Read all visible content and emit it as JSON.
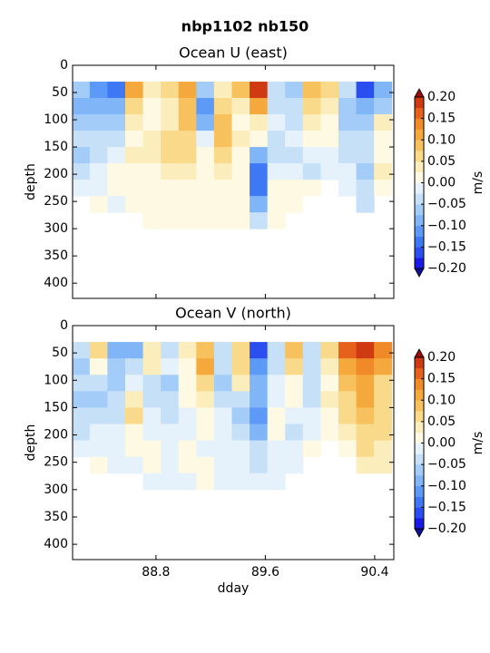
{
  "title": "nbp1102 nb150",
  "chart_data": [
    {
      "type": "contourf",
      "title": "Ocean U (east)",
      "ylabel": "depth",
      "x": [
        88.25,
        88.38,
        88.51,
        88.64,
        88.77,
        88.9,
        89.03,
        89.16,
        89.29,
        89.42,
        89.55,
        89.68,
        89.81,
        89.94,
        90.07,
        90.2,
        90.33,
        90.46
      ],
      "depth": [
        45,
        75,
        105,
        135,
        165,
        195,
        225,
        255,
        285,
        315
      ],
      "values": [
        [
          -0.06,
          -0.08,
          -0.06,
          -0.04,
          -0.06,
          -0.04,
          -0.02,
          null,
          null,
          null
        ],
        [
          -0.12,
          -0.09,
          -0.07,
          -0.05,
          -0.03,
          -0.02,
          -0.01,
          0.01,
          null,
          null
        ],
        [
          -0.14,
          -0.1,
          -0.06,
          -0.03,
          -0.02,
          0.01,
          0.01,
          -0.01,
          null,
          null
        ],
        [
          0.1,
          0.06,
          0.03,
          0.02,
          0.03,
          0.02,
          0.01,
          0.01,
          null,
          null
        ],
        [
          0.04,
          0.02,
          0.01,
          0.03,
          0.04,
          0.02,
          0.01,
          0.01,
          0.01,
          null
        ],
        [
          0.06,
          0.03,
          0.04,
          0.06,
          0.05,
          0.03,
          0.02,
          0.01,
          0.01,
          null
        ],
        [
          0.11,
          0.08,
          0.09,
          0.07,
          0.05,
          0.03,
          0.02,
          0.01,
          0.01,
          null
        ],
        [
          -0.06,
          -0.11,
          -0.08,
          -0.02,
          0.01,
          0.02,
          0.01,
          0.01,
          0.01,
          null
        ],
        [
          0.04,
          0.06,
          0.09,
          0.08,
          0.06,
          0.03,
          0.02,
          0.01,
          0.01,
          null
        ],
        [
          0.08,
          0.03,
          0.02,
          0.03,
          0.02,
          0.01,
          0.02,
          0.01,
          0.01,
          null
        ],
        [
          0.18,
          0.1,
          0.03,
          0.01,
          -0.1,
          -0.15,
          -0.14,
          -0.1,
          -0.04,
          null
        ],
        [
          -0.04,
          -0.03,
          -0.02,
          -0.03,
          -0.04,
          -0.02,
          0.01,
          0.01,
          0.01,
          null
        ],
        [
          -0.06,
          -0.04,
          -0.03,
          -0.02,
          -0.03,
          -0.01,
          0.01,
          0.01,
          null,
          null
        ],
        [
          0.09,
          0.06,
          0.03,
          0.02,
          -0.02,
          -0.03,
          0.01,
          null,
          null,
          null
        ],
        [
          0.07,
          0.04,
          0.02,
          0.01,
          -0.02,
          -0.01,
          null,
          null,
          null,
          null
        ],
        [
          -0.05,
          -0.07,
          -0.06,
          -0.04,
          -0.03,
          -0.02,
          -0.02,
          null,
          null,
          null
        ],
        [
          -0.16,
          -0.1,
          -0.07,
          -0.05,
          -0.04,
          -0.06,
          -0.05,
          -0.03,
          null,
          null
        ],
        [
          -0.09,
          -0.06,
          0.03,
          0.02,
          0.01,
          0.03,
          0.02,
          null,
          null,
          null
        ]
      ],
      "xlim": [
        88.19,
        90.54
      ],
      "xticks": [
        88.8,
        89.6,
        90.4
      ],
      "show_xticklabels": false,
      "ylim": [
        0,
        428
      ],
      "yticks": [
        0,
        50,
        100,
        150,
        200,
        250,
        300,
        350,
        400
      ],
      "invert_y": true,
      "colorbar": {
        "label": "m/s",
        "levels": [
          -0.2,
          -0.175,
          -0.15,
          -0.125,
          -0.1,
          -0.075,
          -0.05,
          -0.025,
          0,
          0.025,
          0.05,
          0.075,
          0.1,
          0.125,
          0.15,
          0.175,
          0.2
        ],
        "colors": [
          "#1a1ae6",
          "#2a4ef0",
          "#3f78f5",
          "#5d9af7",
          "#80b6f8",
          "#a3ccf8",
          "#c6e0f8",
          "#e6f2fb",
          "#fdf9e2",
          "#fbedbc",
          "#f9d98a",
          "#f7c25e",
          "#f5a83c",
          "#f08a28",
          "#e6621c",
          "#d03a12"
        ],
        "under": "#10109a",
        "over": "#a00c0c",
        "ticks": [
          {
            "value": 0.2,
            "label": "0.20"
          },
          {
            "value": 0.15,
            "label": "0.15"
          },
          {
            "value": 0.1,
            "label": "0.10"
          },
          {
            "value": 0.05,
            "label": "0.05"
          },
          {
            "value": 0,
            "label": "0.00"
          },
          {
            "value": -0.05,
            "label": "−0.05"
          },
          {
            "value": -0.1,
            "label": "−0.10"
          },
          {
            "value": -0.15,
            "label": "−0.15"
          },
          {
            "value": -0.2,
            "label": "−0.20"
          }
        ]
      }
    },
    {
      "type": "contourf",
      "title": "Ocean V (north)",
      "ylabel": "depth",
      "xlabel": "dday",
      "x": [
        88.25,
        88.38,
        88.51,
        88.64,
        88.77,
        88.9,
        89.03,
        89.16,
        89.29,
        89.42,
        89.55,
        89.68,
        89.81,
        89.94,
        90.07,
        90.2,
        90.33,
        90.46
      ],
      "depth": [
        45,
        75,
        105,
        135,
        165,
        195,
        225,
        255,
        285,
        315
      ],
      "values": [
        [
          -0.04,
          -0.06,
          -0.05,
          -0.07,
          -0.05,
          -0.03,
          -0.02,
          null,
          null,
          null
        ],
        [
          0.06,
          0.02,
          -0.04,
          -0.06,
          -0.04,
          -0.02,
          -0.01,
          0.01,
          null,
          null
        ],
        [
          -0.1,
          -0.07,
          -0.06,
          -0.04,
          -0.03,
          -0.02,
          -0.01,
          -0.01,
          null,
          null
        ],
        [
          -0.08,
          -0.05,
          -0.02,
          0.04,
          0.06,
          0.02,
          0.01,
          -0.01,
          null,
          null
        ],
        [
          0.04,
          0.03,
          -0.03,
          -0.04,
          -0.02,
          -0.01,
          0.01,
          0.01,
          -0.01,
          null
        ],
        [
          -0.04,
          -0.02,
          -0.06,
          -0.05,
          -0.03,
          -0.02,
          -0.01,
          -0.01,
          -0.01,
          null
        ],
        [
          0.03,
          0.01,
          0.02,
          0.01,
          -0.02,
          -0.01,
          0.01,
          0.01,
          -0.01,
          null
        ],
        [
          0.08,
          0.12,
          0.07,
          0.03,
          0.02,
          0.01,
          -0.01,
          0.01,
          0.01,
          null
        ],
        [
          -0.05,
          -0.04,
          -0.06,
          -0.03,
          -0.02,
          -0.01,
          -0.02,
          -0.01,
          -0.01,
          null
        ],
        [
          0.07,
          0.05,
          0.03,
          -0.04,
          -0.06,
          -0.04,
          -0.02,
          -0.01,
          -0.01,
          null
        ],
        [
          -0.16,
          -0.12,
          -0.09,
          -0.1,
          -0.11,
          -0.08,
          -0.05,
          -0.03,
          -0.01,
          null
        ],
        [
          -0.05,
          -0.04,
          -0.02,
          -0.01,
          0.01,
          0.01,
          -0.01,
          -0.01,
          -0.01,
          null
        ],
        [
          0.09,
          0.06,
          0.02,
          0.01,
          -0.02,
          -0.03,
          -0.01,
          -0.01,
          null,
          null
        ],
        [
          -0.04,
          -0.05,
          -0.04,
          -0.03,
          -0.02,
          -0.01,
          0.01,
          null,
          null,
          null
        ],
        [
          0.05,
          0.03,
          0.02,
          0.03,
          0.02,
          0.01,
          null,
          null,
          null,
          null
        ],
        [
          0.16,
          0.12,
          0.09,
          0.07,
          0.06,
          0.04,
          0.02,
          null,
          null,
          null
        ],
        [
          0.19,
          0.14,
          0.12,
          0.1,
          0.08,
          0.06,
          0.05,
          0.03,
          null,
          null
        ],
        [
          0.13,
          0.1,
          0.07,
          0.06,
          0.06,
          0.05,
          0.04,
          0.04,
          null,
          null
        ]
      ],
      "xlim": [
        88.19,
        90.54
      ],
      "xticks": [
        88.8,
        89.6,
        90.4
      ],
      "show_xticklabels": true,
      "ylim": [
        0,
        428
      ],
      "yticks": [
        0,
        50,
        100,
        150,
        200,
        250,
        300,
        350,
        400
      ],
      "invert_y": true,
      "colorbar": {
        "label": "m/s",
        "levels": [
          -0.2,
          -0.175,
          -0.15,
          -0.125,
          -0.1,
          -0.075,
          -0.05,
          -0.025,
          0,
          0.025,
          0.05,
          0.075,
          0.1,
          0.125,
          0.15,
          0.175,
          0.2
        ],
        "colors": [
          "#1a1ae6",
          "#2a4ef0",
          "#3f78f5",
          "#5d9af7",
          "#80b6f8",
          "#a3ccf8",
          "#c6e0f8",
          "#e6f2fb",
          "#fdf9e2",
          "#fbedbc",
          "#f9d98a",
          "#f7c25e",
          "#f5a83c",
          "#f08a28",
          "#e6621c",
          "#d03a12"
        ],
        "under": "#10109a",
        "over": "#a00c0c",
        "ticks": [
          {
            "value": 0.2,
            "label": "0.20"
          },
          {
            "value": 0.15,
            "label": "0.15"
          },
          {
            "value": 0.1,
            "label": "0.10"
          },
          {
            "value": 0.05,
            "label": "0.05"
          },
          {
            "value": 0,
            "label": "0.00"
          },
          {
            "value": -0.05,
            "label": "−0.05"
          },
          {
            "value": -0.1,
            "label": "−0.10"
          },
          {
            "value": -0.15,
            "label": "−0.15"
          },
          {
            "value": -0.2,
            "label": "−0.20"
          }
        ]
      }
    }
  ]
}
